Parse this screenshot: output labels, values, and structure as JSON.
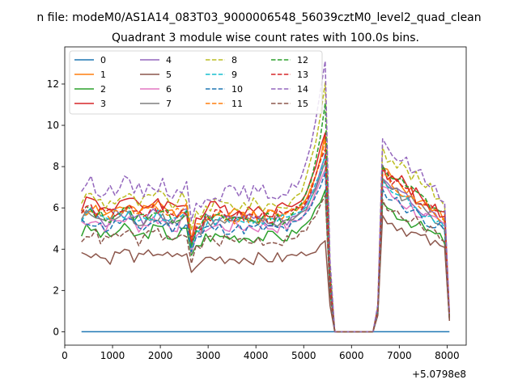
{
  "figure": {
    "suptitle": "n file: modeM0/AS1A14_083T03_9000006548_56039cztM0_level2_quad_clean",
    "title": "Quadrant 3 module wise count rates with 100.0s bins.",
    "offset_label": "+5.0798e8"
  },
  "chart_data": {
    "type": "line",
    "title": "Quadrant 3 module wise count rates with 100.0s bins.",
    "xlabel": "",
    "ylabel": "",
    "xlim": [
      0,
      8400
    ],
    "ylim": [
      -0.65,
      13.8
    ],
    "xticks": [
      0,
      1000,
      2000,
      3000,
      4000,
      5000,
      6000,
      7000,
      8000
    ],
    "xtick_labels": [
      "0",
      "1000",
      "2000",
      "3000",
      "4000",
      "5000",
      "6000",
      "7000",
      "8000"
    ],
    "yticks": [
      0,
      2,
      4,
      6,
      8,
      10,
      12
    ],
    "ytick_labels": [
      "0",
      "2",
      "4",
      "6",
      "8",
      "10",
      "12"
    ],
    "x_offset": "+5.0798e8",
    "x_start": 350,
    "x_step": 100,
    "legend_location": "upper left",
    "legend_columns": 4,
    "series": [
      {
        "name": "0",
        "color": "#1f77b4",
        "dash": "solid",
        "profile": "zero",
        "level": 0,
        "amp": 0,
        "peak": 0,
        "post": 0,
        "seed": 1
      },
      {
        "name": "1",
        "color": "#ff7f0e",
        "dash": "solid",
        "profile": "normal",
        "level": 5.9,
        "amp": 0.35,
        "peak": 9.5,
        "post": 6.2,
        "seed": 2
      },
      {
        "name": "2",
        "color": "#2ca02c",
        "dash": "solid",
        "profile": "normal",
        "level": 4.8,
        "amp": 0.3,
        "peak": 7.0,
        "post": 4.9,
        "seed": 3
      },
      {
        "name": "3",
        "color": "#d62728",
        "dash": "solid",
        "profile": "normal",
        "level": 6.2,
        "amp": 0.4,
        "peak": 9.7,
        "post": 6.3,
        "seed": 4
      },
      {
        "name": "4",
        "color": "#9467bd",
        "dash": "solid",
        "profile": "normal",
        "level": 5.6,
        "amp": 0.35,
        "peak": 8.5,
        "post": 5.8,
        "seed": 5
      },
      {
        "name": "5",
        "color": "#8c564b",
        "dash": "solid",
        "profile": "normal",
        "level": 3.7,
        "amp": 0.3,
        "peak": 4.3,
        "post": 4.4,
        "seed": 6
      },
      {
        "name": "6",
        "color": "#e377c2",
        "dash": "solid",
        "profile": "normal",
        "level": 5.3,
        "amp": 0.35,
        "peak": 8.0,
        "post": 5.5,
        "seed": 7
      },
      {
        "name": "7",
        "color": "#7f7f7f",
        "dash": "solid",
        "profile": "normal",
        "level": 5.5,
        "amp": 0.3,
        "peak": 8.3,
        "post": 5.8,
        "seed": 8
      },
      {
        "name": "8",
        "color": "#bcbd22",
        "dash": "dashed",
        "profile": "normal",
        "level": 6.4,
        "amp": 0.35,
        "peak": 12.0,
        "post": 7.0,
        "seed": 9
      },
      {
        "name": "9",
        "color": "#17becf",
        "dash": "dashed",
        "profile": "normal",
        "level": 5.6,
        "amp": 0.3,
        "peak": 8.5,
        "post": 5.7,
        "seed": 10
      },
      {
        "name": "10",
        "color": "#1f77b4",
        "dash": "dashed",
        "profile": "normal",
        "level": 5.2,
        "amp": 0.3,
        "peak": 7.8,
        "post": 5.4,
        "seed": 11
      },
      {
        "name": "11",
        "color": "#ff7f0e",
        "dash": "dashed",
        "profile": "normal",
        "level": 5.8,
        "amp": 0.35,
        "peak": 9.3,
        "post": 6.0,
        "seed": 12
      },
      {
        "name": "12",
        "color": "#2ca02c",
        "dash": "dashed",
        "profile": "normal",
        "level": 5.7,
        "amp": 0.3,
        "peak": 11.0,
        "post": 6.3,
        "seed": 13
      },
      {
        "name": "13",
        "color": "#d62728",
        "dash": "dashed",
        "profile": "normal",
        "level": 5.8,
        "amp": 0.35,
        "peak": 9.0,
        "post": 6.1,
        "seed": 14
      },
      {
        "name": "14",
        "color": "#9467bd",
        "dash": "dashed",
        "profile": "normal",
        "level": 7.0,
        "amp": 0.4,
        "peak": 13.2,
        "post": 7.3,
        "seed": 15
      },
      {
        "name": "15",
        "color": "#8c564b",
        "dash": "dashed",
        "profile": "normal",
        "level": 4.6,
        "amp": 0.3,
        "peak": 6.6,
        "post": 5.0,
        "seed": 16
      }
    ]
  }
}
